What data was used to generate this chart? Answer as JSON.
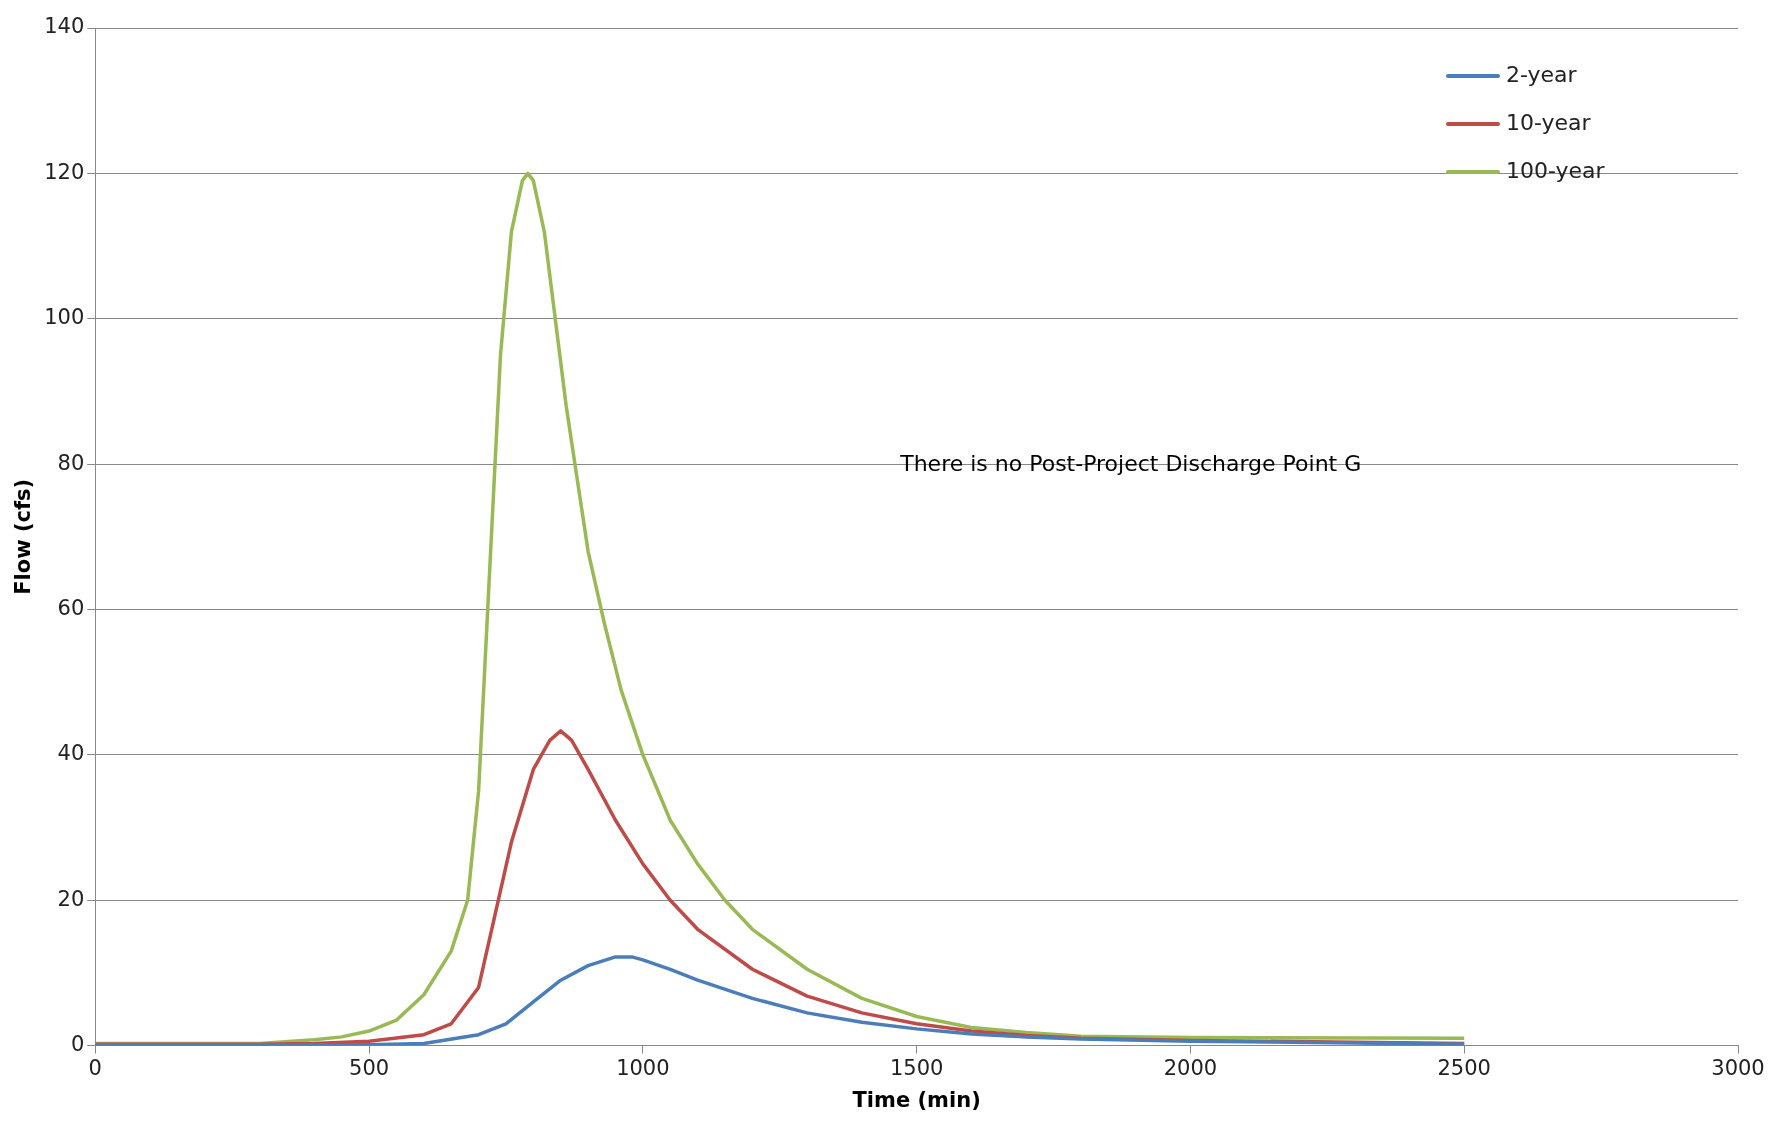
{
  "chart_data": {
    "type": "line",
    "xlabel": "Time (min)",
    "ylabel": "Flow (cfs)",
    "xlim": [
      0,
      3000
    ],
    "xticks": [
      0,
      500,
      1000,
      1500,
      2000,
      2500,
      3000
    ],
    "ylim": [
      0,
      140
    ],
    "yticks": [
      0,
      20,
      40,
      60,
      80,
      100,
      120,
      140
    ],
    "grid": "y",
    "legend": "top right",
    "marker": "none",
    "line_style": "solid",
    "annotations": [
      "There is no Post-Project Discharge Point G"
    ],
    "series": [
      {
        "name": "2-year",
        "color": "#4a7ebb",
        "x": [
          0,
          300,
          500,
          600,
          700,
          750,
          800,
          850,
          900,
          950,
          980,
          1000,
          1050,
          1100,
          1200,
          1300,
          1400,
          1500,
          1600,
          1700,
          1800,
          2000,
          2500
        ],
        "values": [
          0.1,
          0.1,
          0.1,
          0.3,
          1.5,
          3,
          6,
          9,
          11,
          12.2,
          12.2,
          11.8,
          10.5,
          9,
          6.5,
          4.5,
          3.2,
          2.3,
          1.6,
          1.2,
          0.9,
          0.6,
          0.2
        ]
      },
      {
        "name": "10-year",
        "color": "#be4b48",
        "x": [
          0,
          300,
          400,
          500,
          600,
          650,
          700,
          730,
          760,
          800,
          830,
          850,
          870,
          900,
          950,
          1000,
          1050,
          1100,
          1200,
          1300,
          1400,
          1500,
          1600,
          1700,
          1800,
          2000,
          2500
        ],
        "values": [
          0.2,
          0.2,
          0.3,
          0.6,
          1.5,
          3,
          8,
          18,
          28,
          38,
          42,
          43.3,
          42,
          38,
          31,
          25,
          20,
          16,
          10.5,
          6.8,
          4.5,
          3,
          2,
          1.4,
          1,
          0.7,
          0.3
        ]
      },
      {
        "name": "100-year",
        "color": "#98b954",
        "x": [
          0,
          300,
          400,
          450,
          500,
          550,
          600,
          650,
          680,
          700,
          720,
          740,
          760,
          780,
          790,
          800,
          820,
          840,
          860,
          880,
          900,
          930,
          960,
          1000,
          1050,
          1100,
          1150,
          1200,
          1300,
          1400,
          1500,
          1600,
          1700,
          1800,
          2000,
          2500
        ],
        "values": [
          0.3,
          0.3,
          0.8,
          1.2,
          2,
          3.5,
          7,
          13,
          20,
          35,
          65,
          95,
          112,
          119,
          120,
          119,
          112,
          100,
          88,
          78,
          68,
          58,
          49,
          40,
          31,
          25,
          20,
          16,
          10.5,
          6.5,
          4,
          2.5,
          1.8,
          1.3,
          1.1,
          1
        ]
      }
    ]
  }
}
